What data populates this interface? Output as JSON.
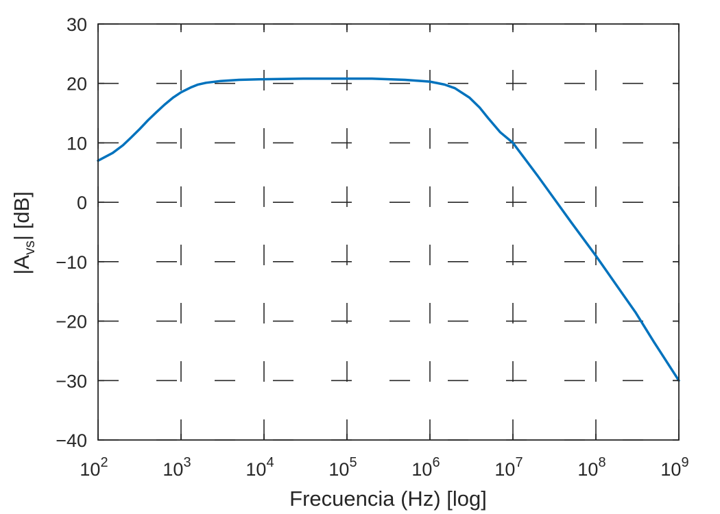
{
  "chart_data": {
    "type": "line",
    "title": "",
    "xlabel": "Frecuencia (Hz) [log]",
    "ylabel_parts": {
      "prefix": "|A",
      "subscript": "vs",
      "suffix": "| [dB]"
    },
    "x_scale": "log",
    "xlim": [
      100,
      1000000000
    ],
    "ylim": [
      -40,
      30
    ],
    "grid": true,
    "x_ticks": [
      {
        "value": 100,
        "base": "10",
        "exp": "2"
      },
      {
        "value": 1000,
        "base": "10",
        "exp": "3"
      },
      {
        "value": 10000,
        "base": "10",
        "exp": "4"
      },
      {
        "value": 100000,
        "base": "10",
        "exp": "5"
      },
      {
        "value": 1000000,
        "base": "10",
        "exp": "6"
      },
      {
        "value": 10000000,
        "base": "10",
        "exp": "7"
      },
      {
        "value": 100000000,
        "base": "10",
        "exp": "8"
      },
      {
        "value": 1000000000,
        "base": "10",
        "exp": "9"
      }
    ],
    "y_ticks": [
      {
        "value": 30,
        "label": "30"
      },
      {
        "value": 20,
        "label": "20"
      },
      {
        "value": 10,
        "label": "10"
      },
      {
        "value": 0,
        "label": "0"
      },
      {
        "value": -10,
        "label": "−10"
      },
      {
        "value": -20,
        "label": "−20"
      },
      {
        "value": -30,
        "label": "−30"
      },
      {
        "value": -40,
        "label": "−40"
      }
    ],
    "series": [
      {
        "color": "#0072BD",
        "points": [
          [
            100,
            7.0
          ],
          [
            150,
            8.3
          ],
          [
            200,
            9.6
          ],
          [
            250,
            10.9
          ],
          [
            316,
            12.3
          ],
          [
            400,
            13.8
          ],
          [
            500,
            15.1
          ],
          [
            631,
            16.4
          ],
          [
            800,
            17.6
          ],
          [
            1000,
            18.5
          ],
          [
            1300,
            19.3
          ],
          [
            1600,
            19.8
          ],
          [
            2000,
            20.1
          ],
          [
            3000,
            20.4
          ],
          [
            5000,
            20.6
          ],
          [
            10000,
            20.7
          ],
          [
            30000,
            20.8
          ],
          [
            100000,
            20.8
          ],
          [
            200000,
            20.8
          ],
          [
            500000,
            20.6
          ],
          [
            800000,
            20.4
          ],
          [
            1000000,
            20.3
          ],
          [
            1500000,
            19.8
          ],
          [
            2000000,
            19.2
          ],
          [
            3000000,
            17.6
          ],
          [
            4000000,
            15.9
          ],
          [
            5000000,
            14.2
          ],
          [
            7000000,
            11.8
          ],
          [
            10000000,
            10.0
          ],
          [
            20000000,
            4.4
          ],
          [
            30000000,
            1.0
          ],
          [
            50000000,
            -3.3
          ],
          [
            100000000,
            -9.0
          ],
          [
            200000000,
            -15.0
          ],
          [
            300000000,
            -18.5
          ],
          [
            500000000,
            -23.5
          ],
          [
            1000000000,
            -30.0
          ]
        ]
      }
    ]
  }
}
